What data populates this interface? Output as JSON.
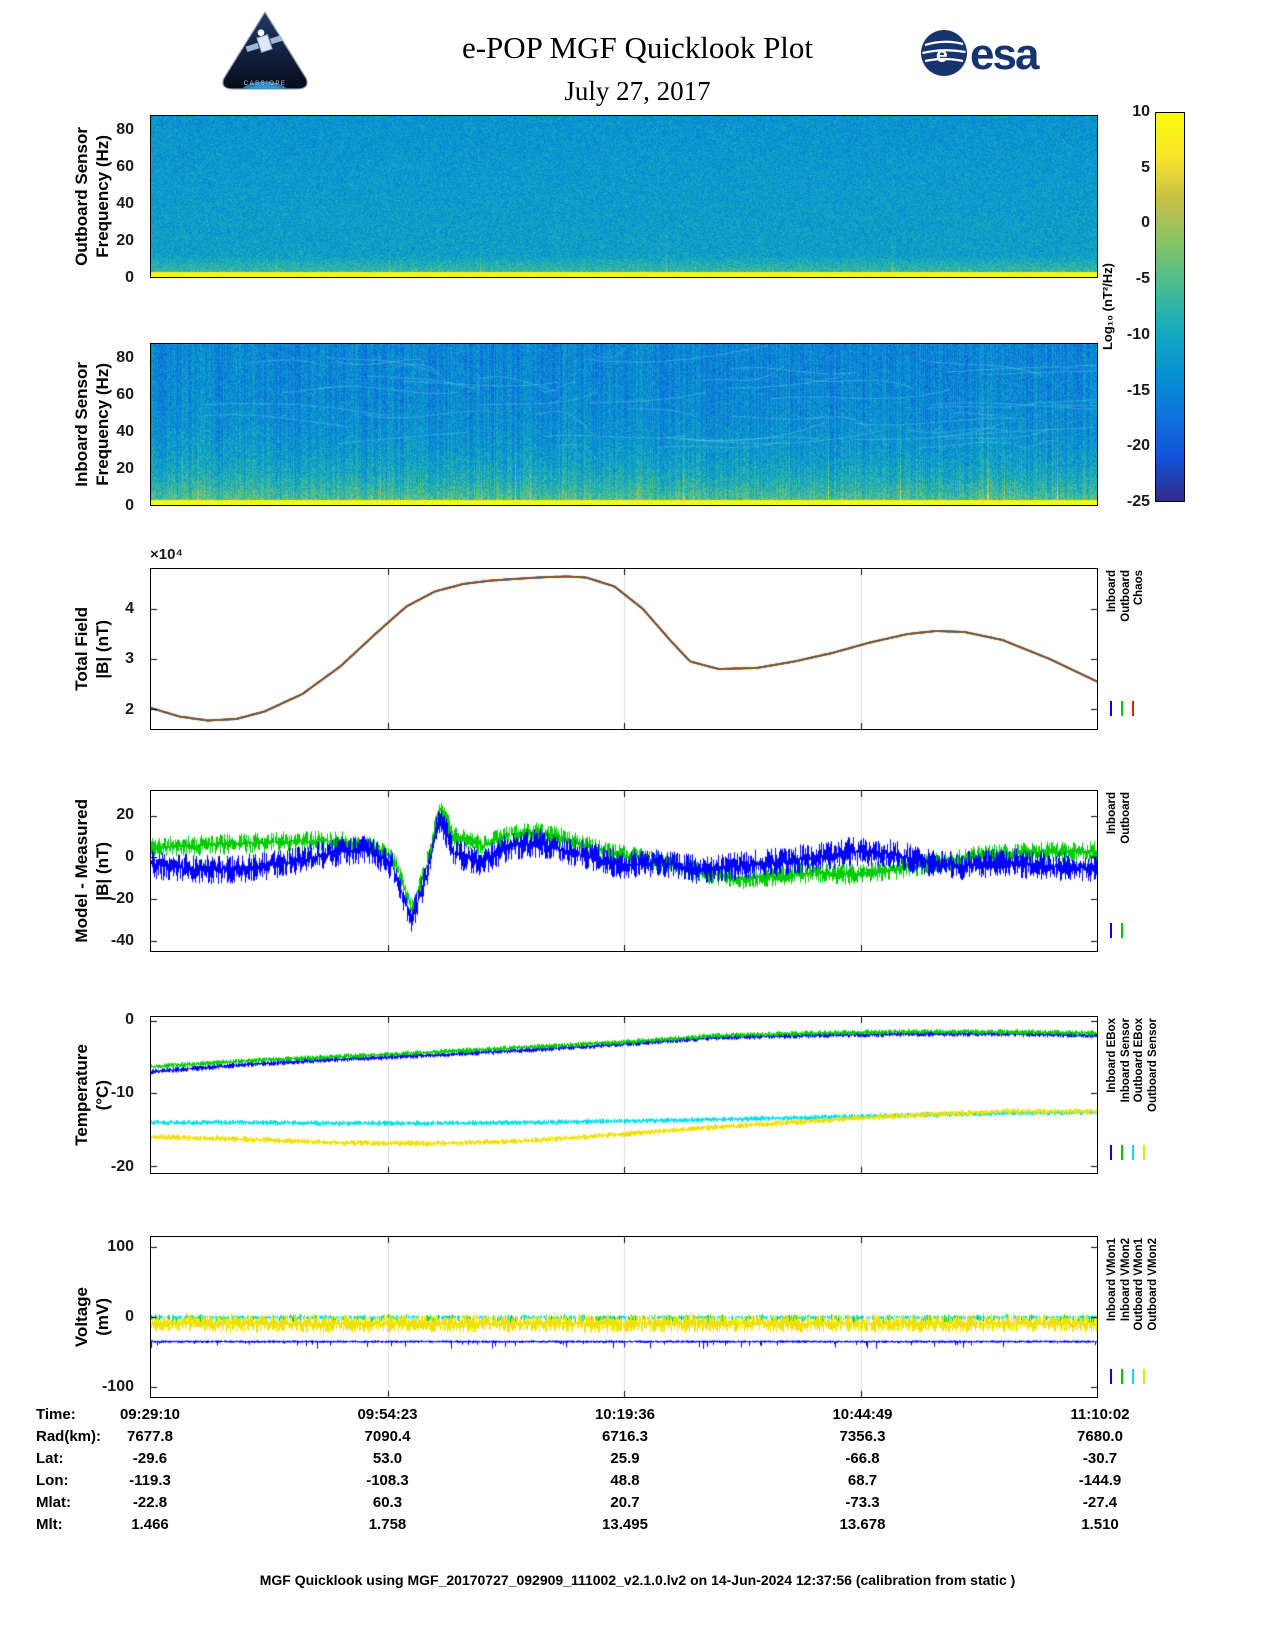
{
  "header": {
    "title": "e-POP MGF Quicklook Plot",
    "date": "July 27, 2017",
    "cassiope_logo_text": "CASSIOPE",
    "esa_logo_text": "esa"
  },
  "colorbar": {
    "label": "Log₁₀ (nT²/Hz)",
    "ticks": [
      10,
      5,
      0,
      -5,
      -10,
      -15,
      -20,
      -25
    ],
    "range": [
      -25,
      10
    ],
    "colormap": "parula"
  },
  "panels": {
    "outboard": {
      "ylabel_line1": "Outboard Sensor",
      "ylabel_line2": "Frequency (Hz)"
    },
    "inboard": {
      "ylabel_line1": "Inboard Sensor",
      "ylabel_line2": "Frequency (Hz)"
    },
    "total_field": {
      "ylabel_line1": "Total Field",
      "ylabel_line2": "|B| (nT)",
      "scale": "×10⁴",
      "legend": [
        {
          "label": "Inboard",
          "color": "#0000FF"
        },
        {
          "label": "Outboard",
          "color": "#00CC00"
        },
        {
          "label": "Chaos",
          "color": "#D62700"
        }
      ]
    },
    "model_measured": {
      "ylabel_line1": "Model - Measured",
      "ylabel_line2": "|B| (nT)",
      "legend": [
        {
          "label": "Inboard",
          "color": "#0000FF"
        },
        {
          "label": "Outboard",
          "color": "#00CC00"
        }
      ]
    },
    "temperature": {
      "ylabel_line1": "Temperature",
      "ylabel_line2": "(°C)",
      "legend": [
        {
          "label": "Inboard EBox",
          "color": "#0000FF"
        },
        {
          "label": "Inboard Sensor",
          "color": "#00CC00"
        },
        {
          "label": "Outboard EBox",
          "color": "#00E0E8"
        },
        {
          "label": "Outboard Sensor",
          "color": "#F0E000"
        }
      ]
    },
    "voltage": {
      "ylabel_line1": "Voltage",
      "ylabel_line2": "(mV)",
      "legend": [
        {
          "label": "Inboard VMon1",
          "color": "#0000FF"
        },
        {
          "label": "Inboard VMon2",
          "color": "#00CC00"
        },
        {
          "label": "Outboard VMon1",
          "color": "#00E0E8"
        },
        {
          "label": "Outboard VMon2",
          "color": "#F0E000"
        }
      ]
    }
  },
  "chart_data": [
    {
      "id": "outboard_spectrogram",
      "type": "heatmap",
      "title": "Outboard Sensor dynamic spectrum",
      "ylabel": "Frequency (Hz)",
      "ylim": [
        0,
        88
      ],
      "yticks": [
        80,
        60,
        40,
        20,
        0
      ],
      "value_label": "Log10 (nT2/Hz)",
      "value_range": [
        -25,
        10
      ],
      "description": "Broadband blue noise near -13, brighter teal below ~12 Hz, intense yellow band below ~3 Hz near +7 to +10, sparse vertical enhancements",
      "texture": {
        "kind": "outboard",
        "base": -13,
        "noise": 7,
        "low_band_freq": 3,
        "low_band_value": 7.5,
        "event_prob": 0.012,
        "seed": 42
      }
    },
    {
      "id": "inboard_spectrogram",
      "type": "heatmap",
      "title": "Inboard Sensor dynamic spectrum",
      "ylabel": "Frequency (Hz)",
      "ylim": [
        0,
        88
      ],
      "yticks": [
        80,
        60,
        40,
        20,
        0
      ],
      "value_label": "Log10 (nT2/Hz)",
      "value_range": [
        -25,
        10
      ],
      "description": "Strong vertical interference striping, teal-green band below ~25 Hz, cyan wisps, yellow band below ~3 Hz",
      "texture": {
        "kind": "inboard",
        "base": -15,
        "noise": 8,
        "low_band_freq": 3,
        "low_band_value": 7.5,
        "event_prob": 0.03,
        "seed": 7
      }
    },
    {
      "id": "total_field",
      "type": "line",
      "title": "Total Field |B| (nT)",
      "ylim": [
        1.6,
        4.8
      ],
      "yticks": [
        4,
        3,
        2
      ],
      "unit_scale": "1e4 nT",
      "grid_x": [
        0.25,
        0.5,
        0.75
      ],
      "seed": 3,
      "x": [
        0,
        0.03,
        0.06,
        0.09,
        0.12,
        0.16,
        0.2,
        0.24,
        0.27,
        0.3,
        0.33,
        0.36,
        0.4,
        0.42,
        0.44,
        0.46,
        0.49,
        0.52,
        0.55,
        0.57,
        0.6,
        0.64,
        0.68,
        0.72,
        0.76,
        0.8,
        0.83,
        0.86,
        0.9,
        0.95,
        1
      ],
      "values": [
        2.02,
        1.85,
        1.77,
        1.8,
        1.95,
        2.3,
        2.85,
        3.55,
        4.05,
        4.35,
        4.5,
        4.57,
        4.62,
        4.64,
        4.65,
        4.63,
        4.45,
        4.0,
        3.35,
        2.95,
        2.8,
        2.82,
        2.95,
        3.12,
        3.33,
        3.5,
        3.56,
        3.54,
        3.38,
        3.0,
        2.55
      ],
      "series": [
        {
          "name": "Inboard",
          "color": "#0000FF",
          "width": 2.0
        },
        {
          "name": "Outboard",
          "color": "#00CC00",
          "width": 1.6
        },
        {
          "name": "Chaos",
          "color": "#B53000",
          "width": 1.3
        }
      ]
    },
    {
      "id": "model_measured",
      "type": "line",
      "title": "Model - Measured |B| (nT)",
      "ylim": [
        -45,
        32
      ],
      "yticks": [
        20,
        0,
        -20,
        -40
      ],
      "grid_x": [
        0.25,
        0.5,
        0.75
      ],
      "seed": 11,
      "x": [
        0,
        0.05,
        0.1,
        0.15,
        0.2,
        0.23,
        0.255,
        0.275,
        0.29,
        0.305,
        0.32,
        0.35,
        0.38,
        0.41,
        0.44,
        0.47,
        0.5,
        0.54,
        0.58,
        0.62,
        0.66,
        0.7,
        0.74,
        0.78,
        0.82,
        0.86,
        0.9,
        0.95,
        1
      ],
      "series": [
        {
          "name": "Outboard",
          "color": "#00CC00",
          "style": "noisy",
          "amp": 5,
          "values": [
            5,
            6,
            7,
            8,
            8,
            5,
            0,
            -24,
            -5,
            24,
            10,
            6,
            11,
            12,
            9,
            4,
            1,
            -2,
            -7,
            -10,
            -9,
            -7,
            -8,
            -6,
            -3,
            0,
            2,
            3,
            3
          ]
        },
        {
          "name": "Inboard",
          "color": "#0000FF",
          "style": "noisy",
          "amp": 7,
          "values": [
            -3,
            -6,
            -5,
            -2,
            3,
            4,
            -4,
            -30,
            -10,
            20,
            2,
            -2,
            6,
            7,
            3,
            0,
            -4,
            -2,
            -6,
            -4,
            -2,
            0,
            3,
            2,
            -2,
            -4,
            -2,
            -4,
            -5
          ]
        }
      ]
    },
    {
      "id": "temperature",
      "type": "line",
      "title": "Temperature (°C)",
      "ylim": [
        -21,
        0.5
      ],
      "yticks": [
        0,
        -10,
        -20
      ],
      "grid_x": [
        0.25,
        0.5,
        0.75
      ],
      "seed": 5,
      "x": [
        0,
        0.1,
        0.2,
        0.3,
        0.4,
        0.5,
        0.6,
        0.7,
        0.8,
        0.9,
        1
      ],
      "series": [
        {
          "name": "Outboard EBox",
          "color": "#00E0E8",
          "style": "noisy",
          "amp": 0.35,
          "values": [
            -14,
            -14,
            -14.1,
            -14.1,
            -14,
            -13.8,
            -13.6,
            -13.3,
            -13,
            -12.7,
            -12.6
          ]
        },
        {
          "name": "Outboard Sensor",
          "color": "#F0E000",
          "style": "noisy",
          "amp": 0.4,
          "values": [
            -16,
            -16.3,
            -16.8,
            -16.9,
            -16.5,
            -15.6,
            -14.6,
            -13.8,
            -13,
            -12.5,
            -12.5
          ]
        },
        {
          "name": "Inboard EBox",
          "color": "#0000FF",
          "style": "noisy",
          "amp": 0.35,
          "values": [
            -7,
            -6,
            -5.3,
            -4.7,
            -4,
            -3.2,
            -2.3,
            -2,
            -1.8,
            -1.8,
            -2
          ]
        },
        {
          "name": "Inboard Sensor",
          "color": "#00CC00",
          "style": "noisy",
          "amp": 0.35,
          "values": [
            -6.3,
            -5.5,
            -4.9,
            -4.3,
            -3.6,
            -2.9,
            -2,
            -1.7,
            -1.5,
            -1.5,
            -1.7
          ]
        }
      ]
    },
    {
      "id": "voltage",
      "type": "line",
      "title": "Voltage (mV)",
      "ylim": [
        -115,
        115
      ],
      "yticks": [
        100,
        0,
        -100
      ],
      "grid_x": [
        0.25,
        0.5,
        0.75
      ],
      "seed": 9,
      "x": [
        0,
        1
      ],
      "series": [
        {
          "name": "Inboard VMon2",
          "color": "#00CC00",
          "style": "noisy",
          "amp": 6,
          "density": 0.3,
          "values": [
            -2,
            -2
          ]
        },
        {
          "name": "Outboard VMon1",
          "color": "#00E0E8",
          "style": "noisy",
          "amp": 2.5,
          "density": 0.7,
          "values": [
            0,
            0
          ]
        },
        {
          "name": "Outboard VMon2",
          "color": "#F0E000",
          "style": "noisy",
          "amp": 13,
          "density": 1,
          "values": [
            -9,
            -9
          ]
        },
        {
          "name": "Inboard VMon1",
          "color": "#0000FF",
          "style": "noisy",
          "amp": 1.5,
          "density": 1,
          "values": [
            -35,
            -35
          ],
          "spike": {
            "p": 0.08,
            "mag": 9
          }
        }
      ]
    }
  ],
  "footer_table": {
    "rows": [
      {
        "label": "Time:",
        "values": [
          "09:29:10",
          "09:54:23",
          "10:19:36",
          "10:44:49",
          "11:10:02"
        ]
      },
      {
        "label": "Rad(km):",
        "values": [
          "7677.8",
          "7090.4",
          "6716.3",
          "7356.3",
          "7680.0"
        ]
      },
      {
        "label": "Lat:",
        "values": [
          "-29.6",
          "53.0",
          "25.9",
          "-66.8",
          "-30.7"
        ]
      },
      {
        "label": "Lon:",
        "values": [
          "-119.3",
          "-108.3",
          "48.8",
          "68.7",
          "-144.9"
        ]
      },
      {
        "label": "Mlat:",
        "values": [
          "-22.8",
          "60.3",
          "20.7",
          "-73.3",
          "-27.4"
        ]
      },
      {
        "label": "Mlt:",
        "values": [
          "1.466",
          "1.758",
          "13.495",
          "13.678",
          "1.510"
        ]
      }
    ]
  },
  "footer_note": "MGF Quicklook using MGF_20170727_092909_111002_v2.1.0.lv2 on 14-Jun-2024 12:37:56 (calibration from static )"
}
